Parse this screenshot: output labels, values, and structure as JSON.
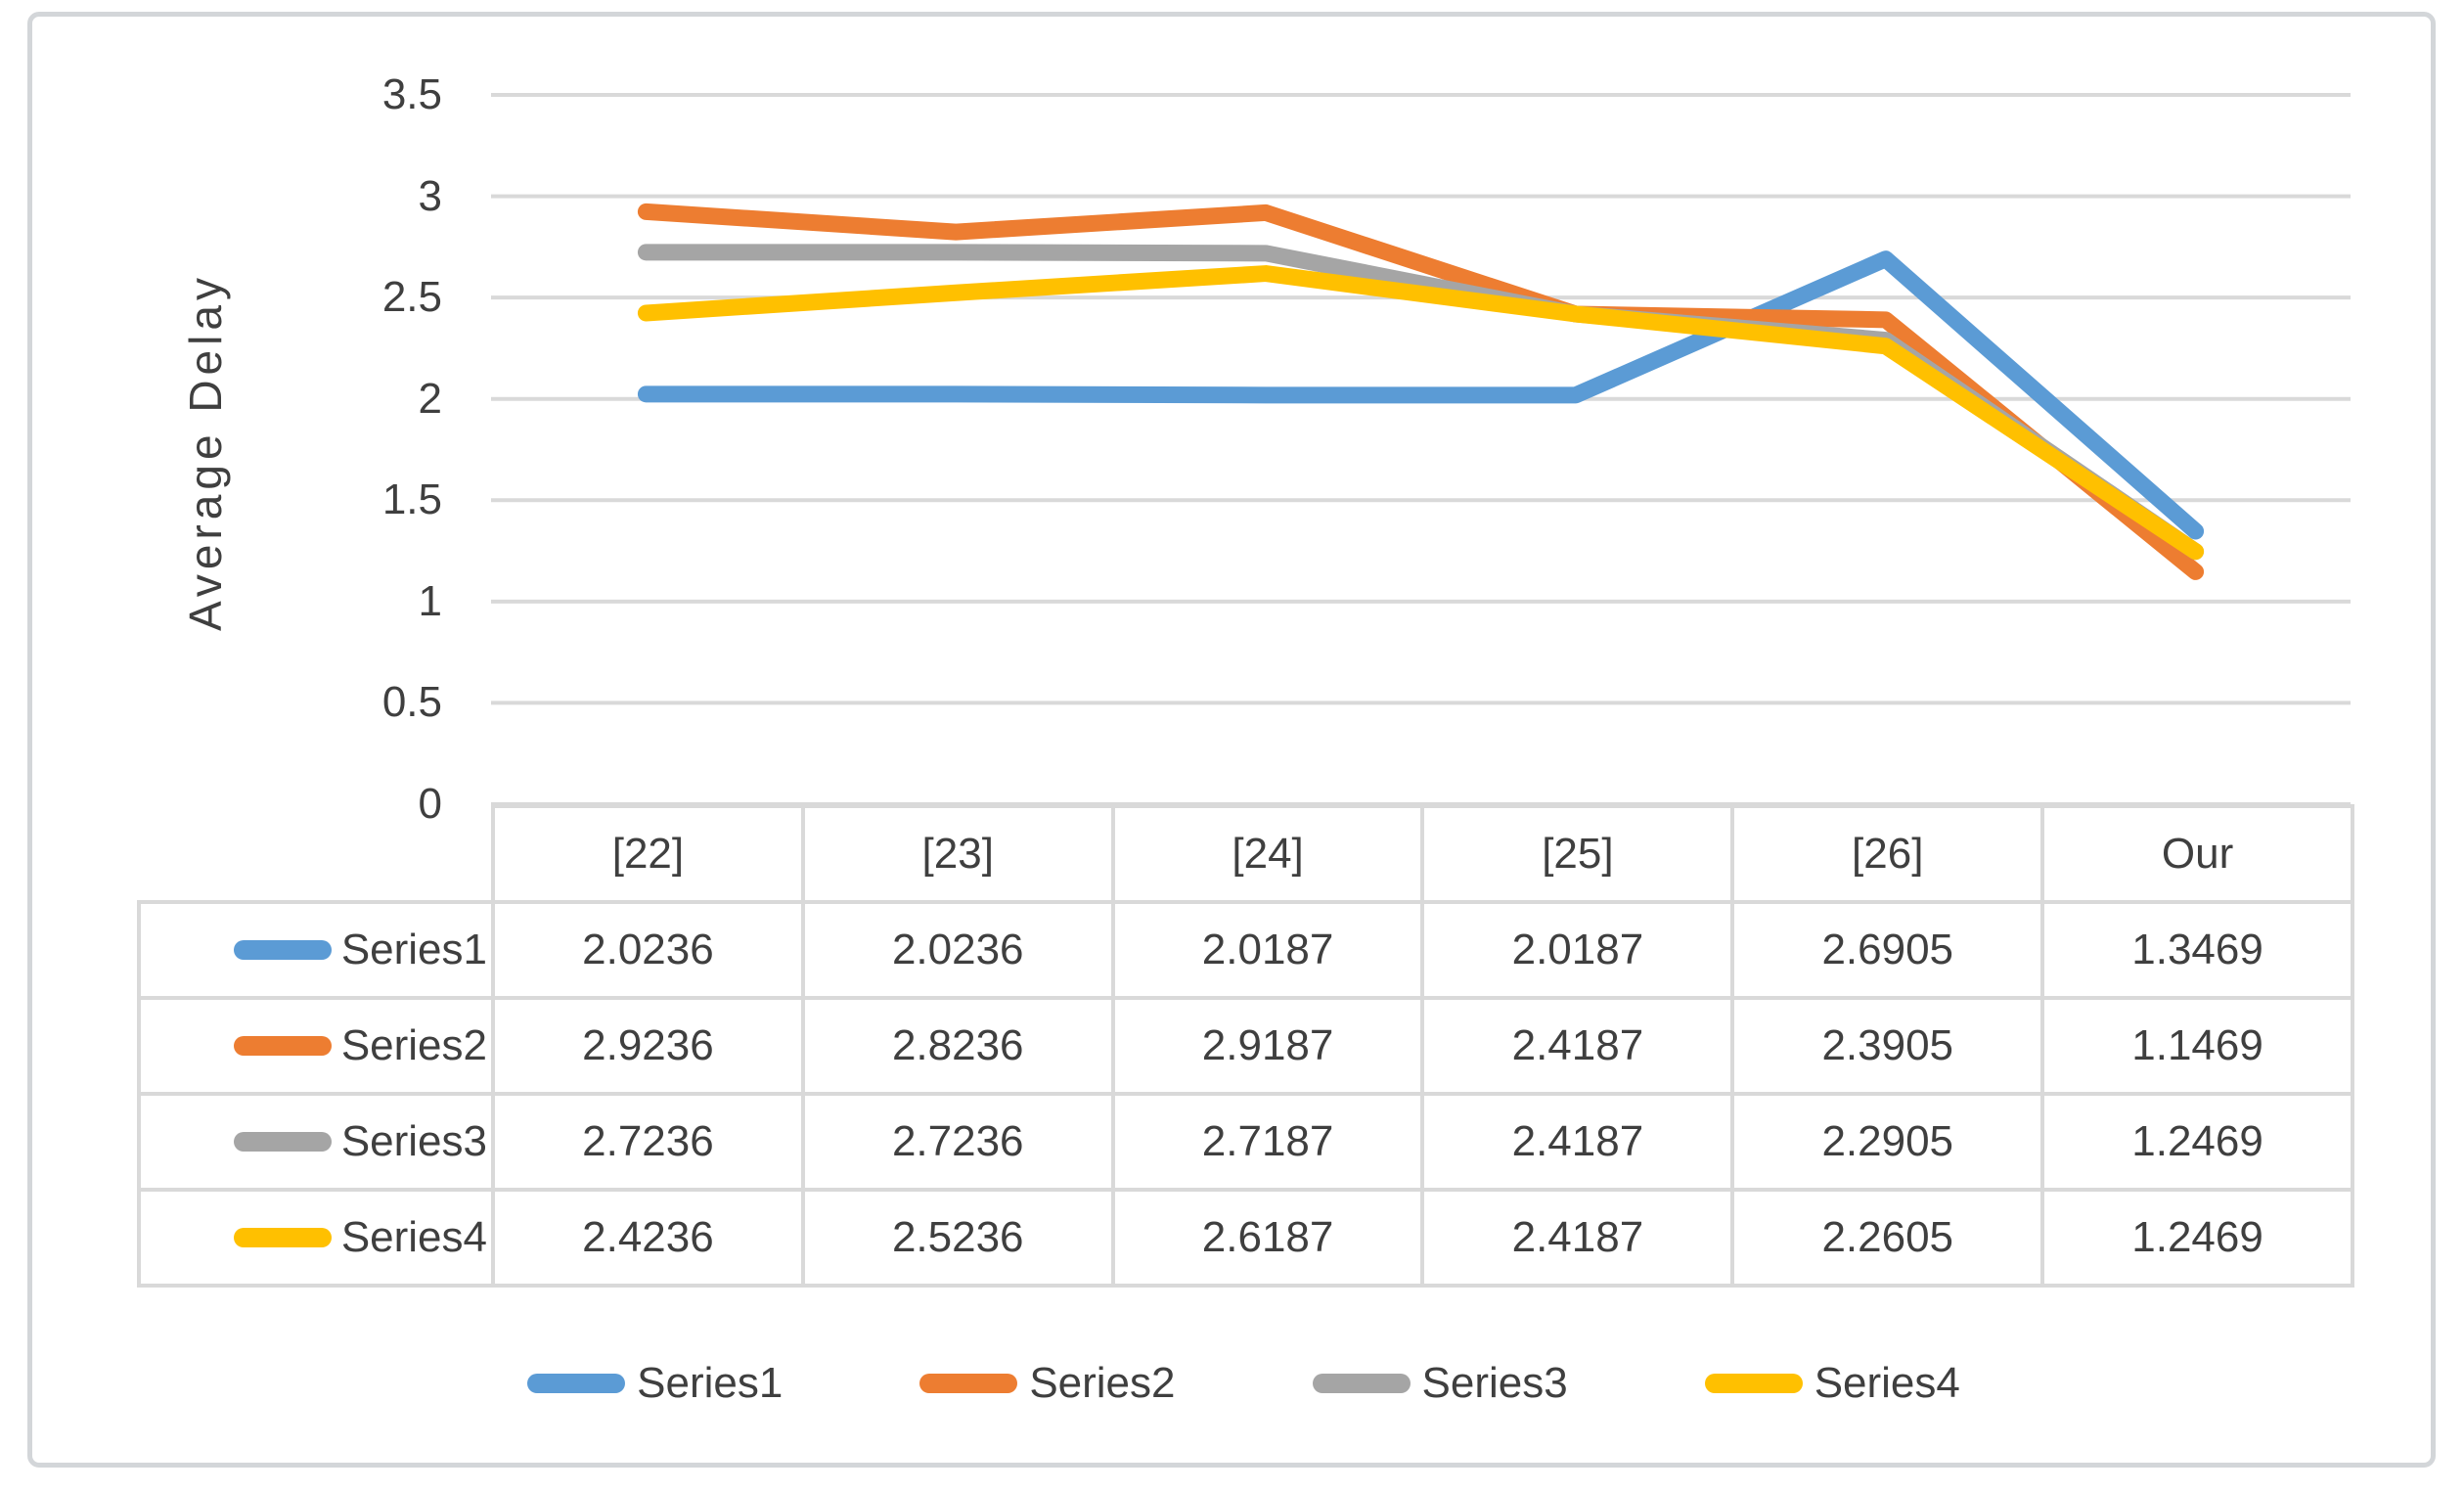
{
  "chart_data": {
    "type": "line",
    "title": "",
    "xlabel": "",
    "ylabel": "Average Delay",
    "categories": [
      "[22]",
      "[23]",
      "[24]",
      "[25]",
      "[26]",
      "Our"
    ],
    "series": [
      {
        "name": "Series1",
        "color": "#5B9BD5",
        "values": [
          2.0236,
          2.0236,
          2.0187,
          2.0187,
          2.6905,
          1.3469
        ]
      },
      {
        "name": "Series2",
        "color": "#ED7D31",
        "values": [
          2.9236,
          2.8236,
          2.9187,
          2.4187,
          2.3905,
          1.1469
        ]
      },
      {
        "name": "Series3",
        "color": "#A5A5A5",
        "values": [
          2.7236,
          2.7236,
          2.7187,
          2.4187,
          2.2905,
          1.2469
        ]
      },
      {
        "name": "Series4",
        "color": "#FFC000",
        "values": [
          2.4236,
          2.5236,
          2.6187,
          2.4187,
          2.2605,
          1.2469
        ]
      }
    ],
    "ylim": [
      0,
      3.5
    ],
    "yticks": [
      0,
      0.5,
      1,
      1.5,
      2,
      2.5,
      3,
      3.5
    ],
    "ytick_labels": [
      "0",
      "0.5",
      "1",
      "1.5",
      "2",
      "2.5",
      "3",
      "3.5"
    ],
    "value_decimals": 4,
    "grid": true,
    "legend_position": "bottom",
    "data_table_shown": true,
    "colors": {
      "gridline": "#d9d9d9",
      "table_border": "#d9d9d9",
      "text": "#3f3f3f",
      "frame_border": "#d3d6d9"
    }
  }
}
